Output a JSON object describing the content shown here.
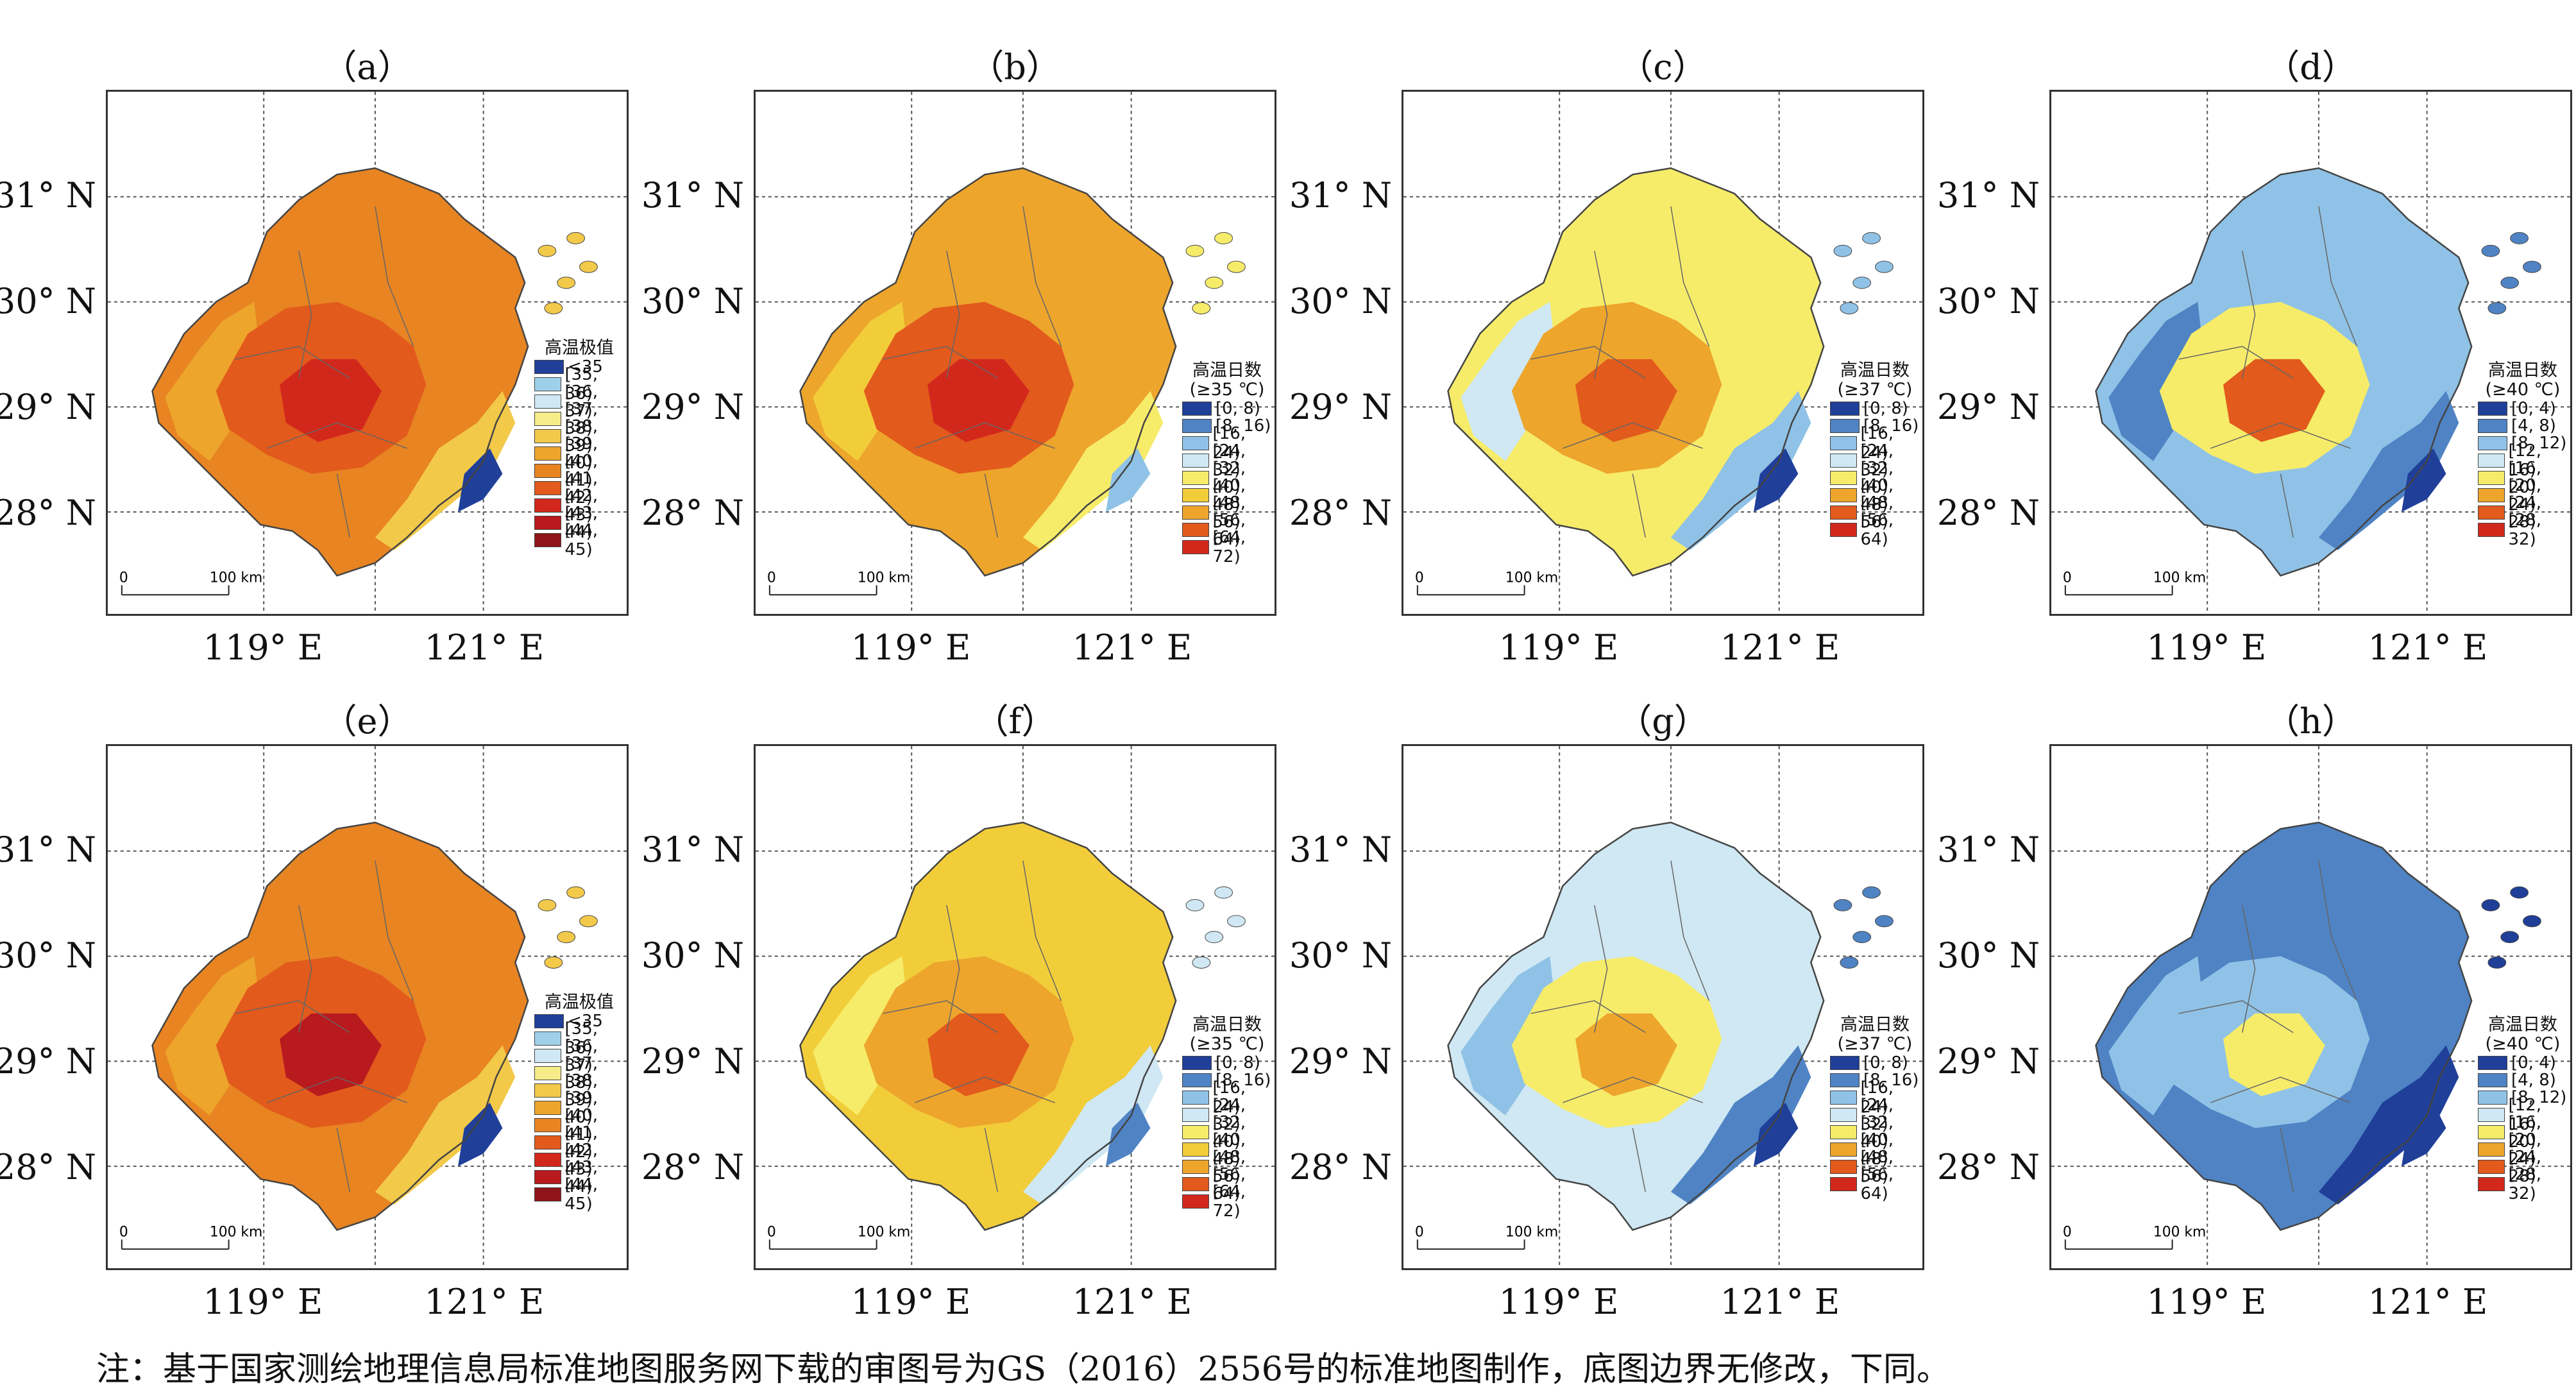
{
  "panels": [
    {
      "id": "a",
      "label": "（a）",
      "legend_title": [
        "高温极值"
      ],
      "scheme": "extreme"
    },
    {
      "id": "b",
      "label": "（b）",
      "legend_title": [
        "高温日数",
        "(≥35 ℃)"
      ],
      "scheme": "days35"
    },
    {
      "id": "c",
      "label": "（c）",
      "legend_title": [
        "高温日数",
        "(≥37 ℃)"
      ],
      "scheme": "days37"
    },
    {
      "id": "d",
      "label": "（d）",
      "legend_title": [
        "高温日数",
        "(≥40 ℃)"
      ],
      "scheme": "days40"
    },
    {
      "id": "e",
      "label": "（e）",
      "legend_title": [
        "高温极值"
      ],
      "scheme": "extreme"
    },
    {
      "id": "f",
      "label": "（f）",
      "legend_title": [
        "高温日数",
        "(≥35 ℃)"
      ],
      "scheme": "days35"
    },
    {
      "id": "g",
      "label": "（g）",
      "legend_title": [
        "高温日数",
        "(≥37 ℃)"
      ],
      "scheme": "days37"
    },
    {
      "id": "h",
      "label": "（h）",
      "legend_title": [
        "高温日数",
        "(≥40 ℃)"
      ],
      "scheme": "days40"
    }
  ],
  "axes": {
    "lat_labels": [
      "31° N",
      "30° N",
      "29° N",
      "28° N"
    ],
    "lon_labels": [
      "119° E",
      "121° E"
    ]
  },
  "scale_bar": {
    "zero": "0",
    "distance": "100 km"
  },
  "legend_schemes": {
    "extreme": [
      {
        "label": "<35",
        "color": "#1f3f99"
      },
      {
        "label": "[35, 36)",
        "color": "#9fd0ea"
      },
      {
        "label": "[36, 37)",
        "color": "#cfe8f3"
      },
      {
        "label": "[37, 38)",
        "color": "#f6ec8a"
      },
      {
        "label": "[38, 39)",
        "color": "#f3c94a"
      },
      {
        "label": "[39, 40)",
        "color": "#eda52c"
      },
      {
        "label": "[40, 41)",
        "color": "#e88422"
      },
      {
        "label": "[41, 42)",
        "color": "#e25a1c"
      },
      {
        "label": "[42, 43)",
        "color": "#d2281c"
      },
      {
        "label": "[43, 44)",
        "color": "#b81a1e"
      },
      {
        "label": "[44, 45)",
        "color": "#8e1419"
      }
    ],
    "days35": [
      {
        "label": "[0, 8)",
        "color": "#1f3f99"
      },
      {
        "label": "[8, 16)",
        "color": "#4f83c4"
      },
      {
        "label": "[16, 24)",
        "color": "#8fc2e6"
      },
      {
        "label": "[24, 32)",
        "color": "#cfe8f3"
      },
      {
        "label": "[32, 40)",
        "color": "#f6ec6a"
      },
      {
        "label": "[40, 48)",
        "color": "#f2cd3a"
      },
      {
        "label": "[48, 56)",
        "color": "#eda52c"
      },
      {
        "label": "[56, 64)",
        "color": "#e25a1c"
      },
      {
        "label": "[64, 72)",
        "color": "#d2281c"
      }
    ],
    "days37": [
      {
        "label": "[0, 8)",
        "color": "#1f3f99"
      },
      {
        "label": "[8, 16)",
        "color": "#4f83c4"
      },
      {
        "label": "[16, 24)",
        "color": "#8fc2e6"
      },
      {
        "label": "[24, 32)",
        "color": "#cfe8f3"
      },
      {
        "label": "[32, 40)",
        "color": "#f6ec6a"
      },
      {
        "label": "[40, 48)",
        "color": "#eda52c"
      },
      {
        "label": "[48, 56)",
        "color": "#e25a1c"
      },
      {
        "label": "[56, 64)",
        "color": "#d2281c"
      }
    ],
    "days40": [
      {
        "label": "[0, 4)",
        "color": "#1f3f99"
      },
      {
        "label": "[4, 8)",
        "color": "#4f83c4"
      },
      {
        "label": "[8, 12)",
        "color": "#8fc2e6"
      },
      {
        "label": "[12, 16)",
        "color": "#cfe8f3"
      },
      {
        "label": "[16, 20)",
        "color": "#f6ec6a"
      },
      {
        "label": "[20, 24)",
        "color": "#eda52c"
      },
      {
        "label": "[24, 28)",
        "color": "#e25a1c"
      },
      {
        "label": "[28, 32)",
        "color": "#d2281c"
      }
    ]
  },
  "panel_fills": {
    "a": {
      "base": "#e88422",
      "outer": "#eda52c",
      "core": "#e25a1c",
      "hot": "#d2281c",
      "coast": "#f3c94a",
      "cool": "#1f3f99"
    },
    "b": {
      "base": "#eda52c",
      "outer": "#f2cd3a",
      "core": "#e25a1c",
      "hot": "#d2281c",
      "coast": "#f6ec6a",
      "cool": "#8fc2e6"
    },
    "c": {
      "base": "#f6ec6a",
      "outer": "#cfe8f3",
      "core": "#eda52c",
      "hot": "#e25a1c",
      "coast": "#8fc2e6",
      "cool": "#1f3f99"
    },
    "d": {
      "base": "#8fc2e6",
      "outer": "#4f83c4",
      "core": "#f6ec6a",
      "hot": "#e25a1c",
      "coast": "#4f83c4",
      "cool": "#1f3f99"
    },
    "e": {
      "base": "#e88422",
      "outer": "#eda52c",
      "core": "#e25a1c",
      "hot": "#b81a1e",
      "coast": "#f3c94a",
      "cool": "#1f3f99"
    },
    "f": {
      "base": "#f2cd3a",
      "outer": "#f6ec6a",
      "core": "#eda52c",
      "hot": "#e25a1c",
      "coast": "#cfe8f3",
      "cool": "#4f83c4"
    },
    "g": {
      "base": "#cfe8f3",
      "outer": "#8fc2e6",
      "core": "#f6ec6a",
      "hot": "#eda52c",
      "coast": "#4f83c4",
      "cool": "#1f3f99"
    },
    "h": {
      "base": "#4f83c4",
      "outer": "#8fc2e6",
      "core": "#8fc2e6",
      "hot": "#f6ec6a",
      "coast": "#1f3f99",
      "cool": "#1f3f99"
    }
  },
  "footnote": "注：基于国家测绘地理信息局标准地图服务网下载的审图号为GS（2016）2556号的标准地图制作，底图边界无修改，下同。"
}
